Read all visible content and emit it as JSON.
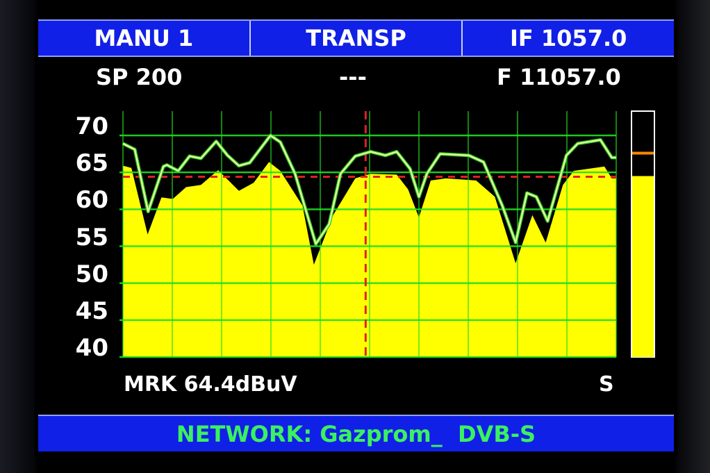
{
  "header": {
    "mode": "MANU 1",
    "function": "TRANSP",
    "if_freq": "IF 1057.0"
  },
  "subheader": {
    "span": "SP 200",
    "center": "---",
    "freq": "F 11057.0"
  },
  "marker_readout": "MRK 64.4dBuV",
  "status_letter": "S",
  "footer": {
    "network": "NETWORK: Gazprom_  DVB-S"
  },
  "colors": {
    "bar_blue": "#1020e6",
    "fill": "#ffff00",
    "grid": "#22dd22",
    "marker": "#dd2222",
    "footer_text": "#3cf060"
  },
  "chart_data": {
    "type": "area",
    "ylim": [
      40,
      73.3
    ],
    "yticks": [
      "70",
      "65",
      "60",
      "55",
      "50",
      "45",
      "40"
    ],
    "grid": true,
    "x_unit": "percent of span",
    "xlim": [
      0,
      100
    ],
    "series": [
      {
        "role": "peak-hold-trace",
        "x": [
          0,
          2.4,
          5.1,
          8.2,
          8.9,
          11.2,
          13.5,
          15.8,
          18.9,
          21.2,
          23.5,
          25.7,
          29.9,
          31.9,
          34.9,
          39.1,
          41.8,
          44.1,
          47.1,
          50.2,
          53.2,
          55.5,
          58.2,
          60.0,
          61.6,
          64.3,
          70.1,
          73.1,
          76.9,
          79.6,
          81.9,
          83.8,
          86.1,
          89.9,
          92.2,
          96.8,
          99.1,
          100
        ],
        "y": [
          68.9,
          68.1,
          59.7,
          65.8,
          66.0,
          65.2,
          67.2,
          66.9,
          69.2,
          67.3,
          65.9,
          66.3,
          70.0,
          69.1,
          64.8,
          55.3,
          58.0,
          64.8,
          67.2,
          67.8,
          67.3,
          67.8,
          65.5,
          61.7,
          64.8,
          67.5,
          67.3,
          66.4,
          60.5,
          55.5,
          62.2,
          61.7,
          58.4,
          67.3,
          68.9,
          69.4,
          67.0,
          67.0
        ]
      },
      {
        "role": "live-spectrum-fill",
        "x": [
          0,
          1.7,
          5.0,
          7.8,
          10.1,
          12.8,
          15.8,
          19.3,
          23.5,
          26.5,
          29.6,
          31.9,
          36.4,
          38.7,
          42.6,
          47.1,
          50.2,
          55.5,
          57.8,
          60.0,
          62.4,
          65.5,
          71.6,
          75.4,
          79.6,
          83.0,
          85.7,
          89.2,
          91.4,
          97.6,
          99.1,
          100
        ],
        "y": [
          65.9,
          65.6,
          56.6,
          61.6,
          61.4,
          63.0,
          63.3,
          65.3,
          62.5,
          63.6,
          66.4,
          65.2,
          60.5,
          52.5,
          59.2,
          64.2,
          64.8,
          64.7,
          62.7,
          58.9,
          63.9,
          64.2,
          63.9,
          61.7,
          52.7,
          59.2,
          55.5,
          63.3,
          65.2,
          65.8,
          64.2,
          64.2
        ]
      }
    ],
    "marker_x": 49.2,
    "marker_level": 64.4,
    "level_bar": {
      "value": 64.5,
      "peak": 67.6
    }
  }
}
